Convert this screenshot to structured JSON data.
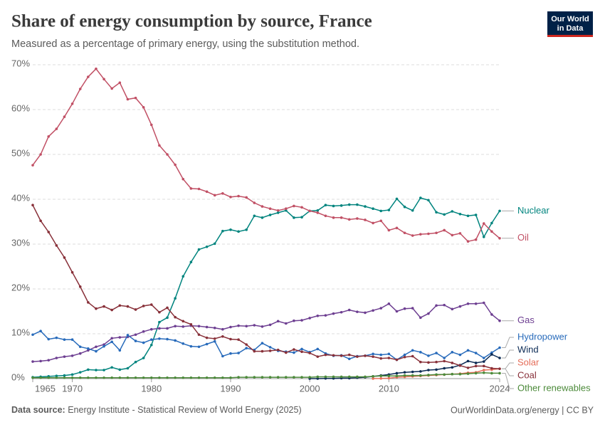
{
  "chart_data": {
    "type": "line",
    "title": "Share of energy consumption by source, France",
    "subtitle": "Measured as a percentage of primary energy, using the substitution method.",
    "logo": [
      "Our World",
      "in Data"
    ],
    "source_label": "Data source:",
    "source": "Energy Institute - Statistical Review of World Energy (2025)",
    "credit": "OurWorldinData.org/energy | CC BY",
    "x": [
      1965,
      1966,
      1967,
      1968,
      1969,
      1970,
      1971,
      1972,
      1973,
      1974,
      1975,
      1976,
      1977,
      1978,
      1979,
      1980,
      1981,
      1982,
      1983,
      1984,
      1985,
      1986,
      1987,
      1988,
      1989,
      1990,
      1991,
      1992,
      1993,
      1994,
      1995,
      1996,
      1997,
      1998,
      1999,
      2000,
      2001,
      2002,
      2003,
      2004,
      2005,
      2006,
      2007,
      2008,
      2009,
      2010,
      2011,
      2012,
      2013,
      2014,
      2015,
      2016,
      2017,
      2018,
      2019,
      2020,
      2021,
      2022,
      2023,
      2024
    ],
    "xlim": [
      1965,
      2024
    ],
    "xticks": [
      1965,
      1970,
      1980,
      1990,
      2000,
      2010,
      2024
    ],
    "ylim": [
      0,
      70
    ],
    "yticks": [
      {
        "value": 0,
        "label": "0%"
      },
      {
        "value": 10,
        "label": "10%"
      },
      {
        "value": 20,
        "label": "20%"
      },
      {
        "value": 30,
        "label": "30%"
      },
      {
        "value": 40,
        "label": "40%"
      },
      {
        "value": 50,
        "label": "50%"
      },
      {
        "value": 60,
        "label": "60%"
      },
      {
        "value": 70,
        "label": "70%"
      }
    ],
    "grid": true,
    "series": [
      {
        "name": "Nuclear",
        "color": "#00847e",
        "values": [
          0.3,
          0.4,
          0.5,
          0.6,
          0.7,
          0.9,
          1.4,
          2.0,
          1.9,
          1.9,
          2.5,
          2.0,
          2.3,
          3.7,
          4.6,
          7.5,
          12.6,
          13.6,
          17.9,
          22.8,
          26.0,
          28.8,
          29.4,
          30.1,
          32.9,
          33.2,
          32.8,
          33.2,
          36.3,
          35.9,
          36.5,
          37.0,
          37.5,
          35.9,
          36.0,
          37.4,
          37.5,
          38.7,
          38.5,
          38.6,
          38.8,
          38.8,
          38.4,
          37.9,
          37.4,
          37.6,
          40.1,
          38.3,
          37.5,
          40.3,
          39.8,
          37.1,
          36.6,
          37.3,
          36.7,
          36.3,
          36.5,
          31.6,
          34.7,
          37.4
        ]
      },
      {
        "name": "Oil",
        "color": "#c15065",
        "values": [
          47.6,
          50,
          54,
          55.7,
          58.4,
          61.3,
          64.6,
          67.3,
          69.1,
          66.8,
          64.7,
          66,
          62.3,
          62.6,
          60.5,
          56.6,
          52,
          50,
          47.7,
          44.5,
          42.4,
          42.3,
          41.7,
          40.9,
          41.3,
          40.5,
          40.7,
          40.4,
          39.2,
          38.4,
          37.9,
          37.5,
          37.9,
          38.5,
          38.2,
          37.4,
          37,
          36.3,
          35.9,
          35.9,
          35.5,
          35.7,
          35.4,
          34.7,
          35.2,
          33.1,
          33.6,
          32.5,
          31.9,
          32.2,
          32.3,
          32.5,
          33.1,
          32,
          32.4,
          30.6,
          31,
          34.6,
          32.8,
          31.3
        ]
      },
      {
        "name": "Gas",
        "color": "#6d3e91",
        "values": [
          3.8,
          3.9,
          4.1,
          4.6,
          4.9,
          5.1,
          5.6,
          6.3,
          7.1,
          7.6,
          9.0,
          9.2,
          9.3,
          9.8,
          10.5,
          11.0,
          11.2,
          11.2,
          11.7,
          11.6,
          11.8,
          11.7,
          11.5,
          11.3,
          11.0,
          11.5,
          11.8,
          11.7,
          11.9,
          11.6,
          12.0,
          12.8,
          12.3,
          12.9,
          13.0,
          13.5,
          14.0,
          14.1,
          14.5,
          14.8,
          15.3,
          14.9,
          14.7,
          15.2,
          15.7,
          16.7,
          15.0,
          15.6,
          15.7,
          13.6,
          14.5,
          16.3,
          16.4,
          15.5,
          16.1,
          16.7,
          16.7,
          16.9,
          14.3,
          12.9
        ]
      },
      {
        "name": "Hydropower",
        "color": "#286bbb",
        "values": [
          9.8,
          10.6,
          8.8,
          9.1,
          8.7,
          8.7,
          7.1,
          6.7,
          6.1,
          7.2,
          8.2,
          6.3,
          9.7,
          8.4,
          8.0,
          8.7,
          8.9,
          8.8,
          8.5,
          7.8,
          7.2,
          7.1,
          7.7,
          8.3,
          5.0,
          5.6,
          5.7,
          6.8,
          6.4,
          7.9,
          7.0,
          6.2,
          6.0,
          5.8,
          6.6,
          5.9,
          6.6,
          5.6,
          5.1,
          5.2,
          4.4,
          5.0,
          5.1,
          5.5,
          5.3,
          5.5,
          4.2,
          5.3,
          6.3,
          5.9,
          5.1,
          5.7,
          4.6,
          5.9,
          5.3,
          6.3,
          5.7,
          4.6,
          5.8,
          6.9
        ]
      },
      {
        "name": "Wind",
        "color": "#0b2a54",
        "values": [
          null,
          null,
          null,
          null,
          null,
          null,
          null,
          null,
          null,
          null,
          null,
          null,
          null,
          null,
          null,
          null,
          null,
          null,
          null,
          null,
          null,
          null,
          null,
          null,
          null,
          null,
          null,
          null,
          null,
          null,
          null,
          null,
          null,
          null,
          null,
          0.0,
          0.0,
          0.05,
          0.05,
          0.1,
          0.1,
          0.2,
          0.3,
          0.5,
          0.7,
          0.9,
          1.2,
          1.4,
          1.5,
          1.6,
          1.9,
          2.0,
          2.3,
          2.5,
          3.0,
          3.9,
          3.5,
          3.8,
          5.4,
          4.6
        ]
      },
      {
        "name": "Solar",
        "color": "#e56e5a",
        "values": [
          null,
          null,
          null,
          null,
          null,
          null,
          null,
          null,
          null,
          null,
          null,
          null,
          null,
          null,
          null,
          null,
          null,
          null,
          null,
          null,
          null,
          null,
          null,
          null,
          null,
          null,
          null,
          null,
          null,
          null,
          null,
          null,
          null,
          null,
          null,
          null,
          null,
          null,
          null,
          null,
          null,
          null,
          null,
          0.01,
          0.03,
          0.1,
          0.3,
          0.4,
          0.5,
          0.6,
          0.7,
          0.8,
          0.9,
          1.0,
          1.1,
          1.3,
          1.4,
          1.9,
          2.0,
          2.2
        ]
      },
      {
        "name": "Coal",
        "color": "#883039",
        "values": [
          38.7,
          35.2,
          32.7,
          29.7,
          27,
          23.7,
          20.5,
          17,
          15.6,
          16.1,
          15.3,
          16.3,
          16.1,
          15.4,
          16.2,
          16.5,
          14.8,
          15.8,
          13.7,
          12.8,
          12.1,
          9.8,
          9.1,
          8.9,
          9.4,
          8.8,
          8.7,
          7.6,
          6.1,
          6.1,
          6.2,
          6.4,
          5.8,
          6.5,
          6.0,
          5.7,
          4.9,
          5.3,
          5.2,
          5.1,
          5.3,
          4.9,
          5.1,
          4.9,
          4.5,
          4.6,
          4.2,
          4.8,
          5.0,
          3.7,
          3.6,
          3.7,
          3.9,
          3.5,
          2.9,
          2.4,
          2.8,
          2.8,
          2.3,
          2.2
        ]
      },
      {
        "name": "Other renewables",
        "color": "#4c8a3a",
        "values": [
          0.2,
          0.2,
          0.2,
          0.2,
          0.2,
          0.2,
          0.2,
          0.2,
          0.2,
          0.2,
          0.2,
          0.2,
          0.2,
          0.2,
          0.2,
          0.2,
          0.2,
          0.2,
          0.2,
          0.2,
          0.2,
          0.2,
          0.2,
          0.2,
          0.2,
          0.2,
          0.3,
          0.3,
          0.3,
          0.3,
          0.3,
          0.3,
          0.3,
          0.3,
          0.3,
          0.3,
          0.4,
          0.4,
          0.4,
          0.4,
          0.4,
          0.4,
          0.4,
          0.5,
          0.6,
          0.6,
          0.6,
          0.7,
          0.7,
          0.7,
          0.8,
          0.9,
          0.9,
          1.0,
          1.0,
          1.1,
          1.2,
          1.3,
          1.2,
          1.2
        ]
      }
    ]
  }
}
